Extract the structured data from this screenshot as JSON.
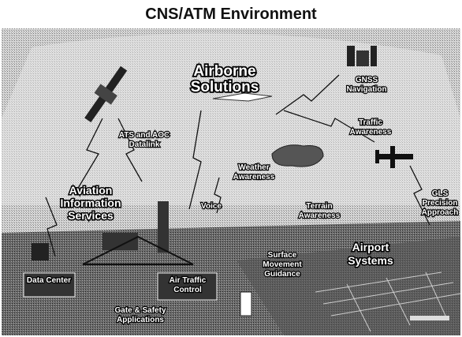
{
  "header": {
    "title": "CNS/ATM Environment"
  },
  "nodes": [
    {
      "lines": [
        "Airborne",
        "Solutions"
      ]
    },
    {
      "lines": [
        "GNSS",
        "Navigation"
      ]
    },
    {
      "lines": [
        "ATS and AOC",
        "Datalink"
      ]
    },
    {
      "lines": [
        "Traffic",
        "Awareness"
      ]
    },
    {
      "lines": [
        "Weather",
        "Awareness"
      ]
    },
    {
      "lines": [
        "Aviation",
        "Information",
        "Services"
      ]
    },
    {
      "lines": [
        "Voice"
      ]
    },
    {
      "lines": [
        "Terrain",
        "Awareness"
      ]
    },
    {
      "lines": [
        "GLS",
        "Precision",
        "Approach"
      ]
    },
    {
      "lines": [
        "Surface",
        "Movement",
        "Guidance"
      ]
    },
    {
      "lines": [
        "Airport",
        "Systems"
      ]
    },
    {
      "lines": [
        "Data Center"
      ]
    },
    {
      "lines": [
        "Air Traffic",
        "Control"
      ]
    },
    {
      "lines": [
        "Gate & Safety",
        "Applications"
      ]
    }
  ]
}
